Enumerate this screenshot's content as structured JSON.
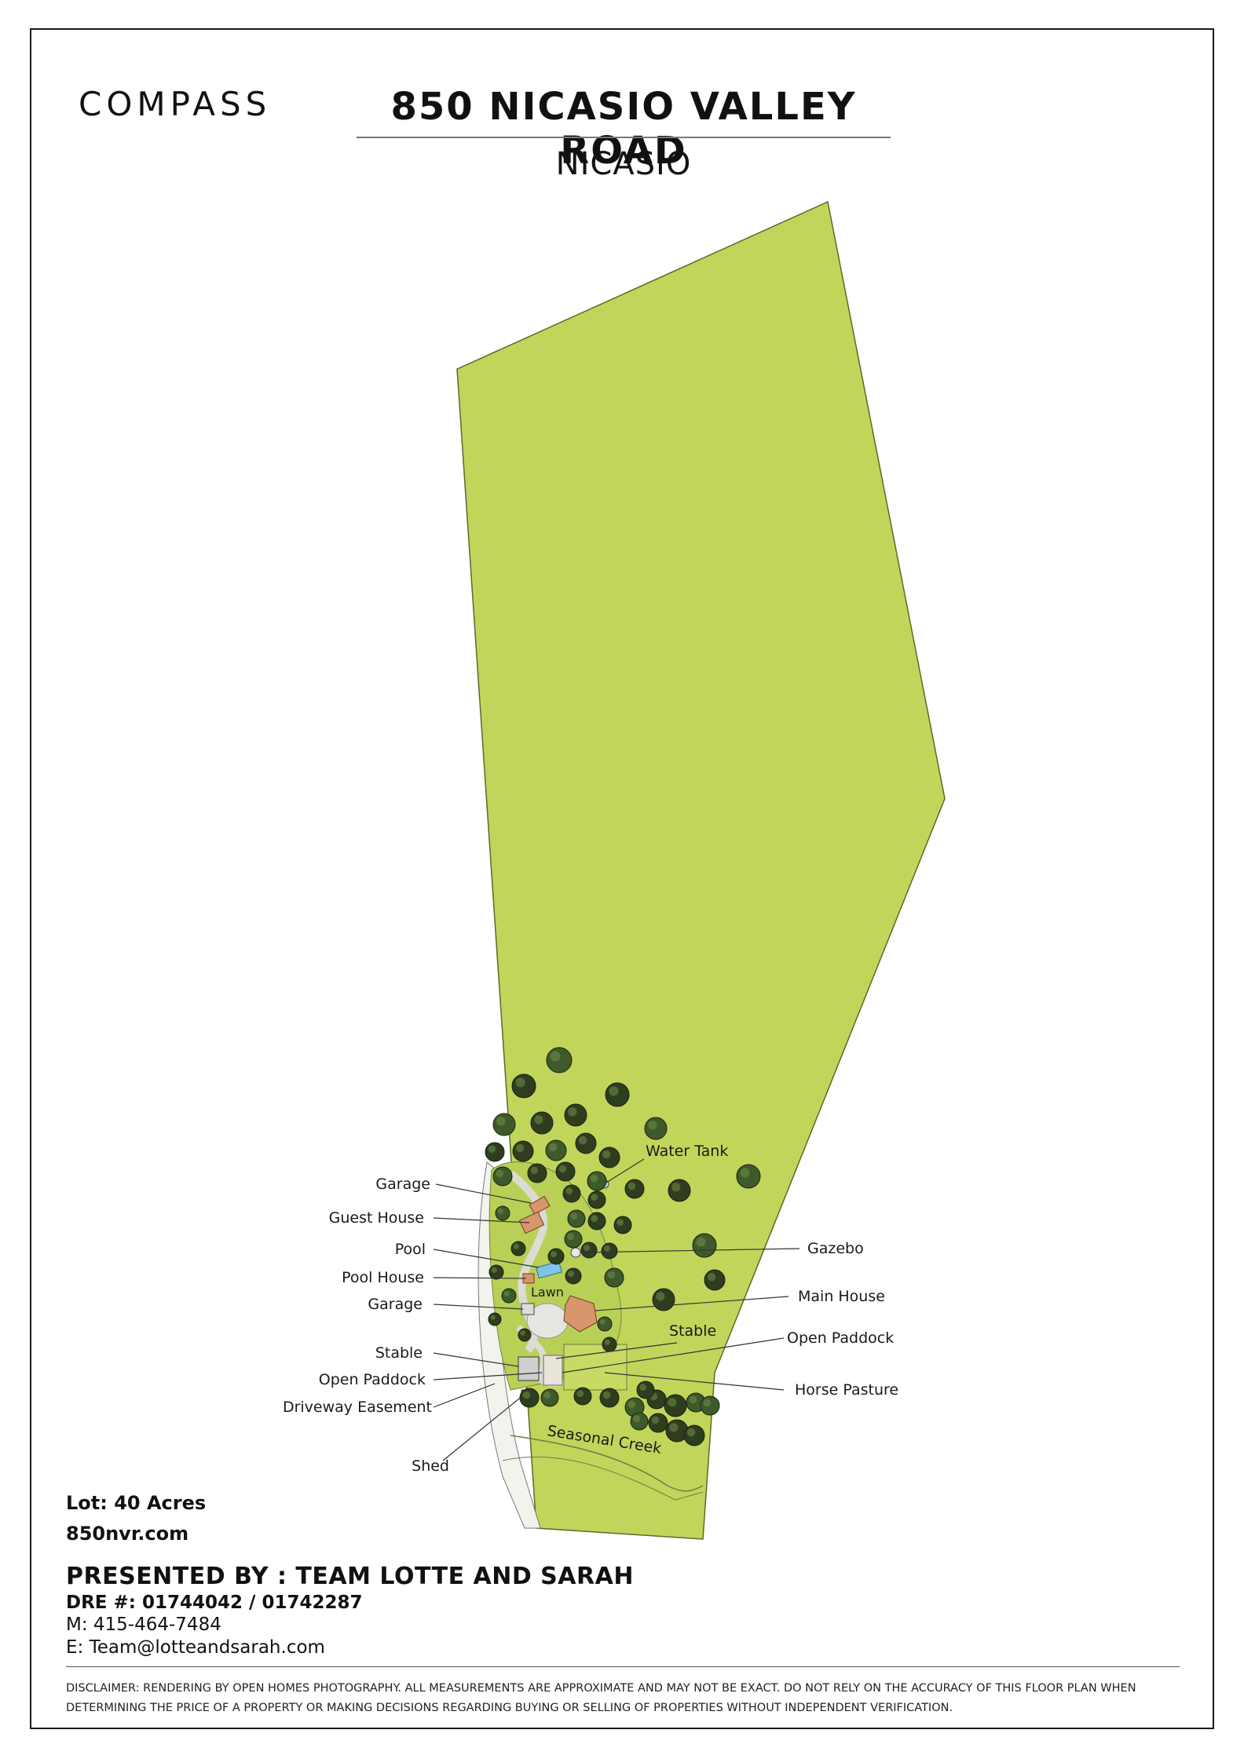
{
  "header": {
    "logo": "COMPASS",
    "title": "850 NICASIO VALLEY ROAD",
    "subtitle": "NICASIO"
  },
  "map": {
    "parcel_color": "#c2d55b",
    "tree_color": "#2f3d1f",
    "structure_color": "#d9956b",
    "labels": {
      "garage_top": "Garage",
      "guest_house": "Guest House",
      "pool": "Pool",
      "pool_house": "Pool House",
      "garage_bottom": "Garage",
      "stable_left": "Stable",
      "open_paddock_left": "Open Paddock",
      "driveway_easement": "Driveway Easement",
      "shed": "Shed",
      "water_tank": "Water Tank",
      "gazebo": "Gazebo",
      "main_house": "Main House",
      "stable_right": "Stable",
      "open_paddock_right": "Open Paddock",
      "horse_pasture": "Horse Pasture",
      "lawn": "Lawn",
      "seasonal_creek": "Seasonal Creek"
    }
  },
  "details": {
    "lot": "Lot: 40 Acres",
    "website": "850nvr.com",
    "presented_by": "PRESENTED BY : TEAM LOTTE AND SARAH",
    "dre": "DRE #: 01744042 / 01742287",
    "phone": "M: 415-464-7484",
    "email": "E: Team@lotteandsarah.com"
  },
  "disclaimer": "DISCLAIMER: RENDERING BY OPEN HOMES PHOTOGRAPHY. ALL MEASUREMENTS ARE APPROXIMATE AND MAY NOT BE EXACT. DO NOT RELY ON THE ACCURACY OF THIS FLOOR PLAN WHEN DETERMINING THE PRICE OF A PROPERTY OR MAKING DECISIONS REGARDING BUYING OR SELLING OF PROPERTIES WITHOUT INDEPENDENT VERIFICATION."
}
